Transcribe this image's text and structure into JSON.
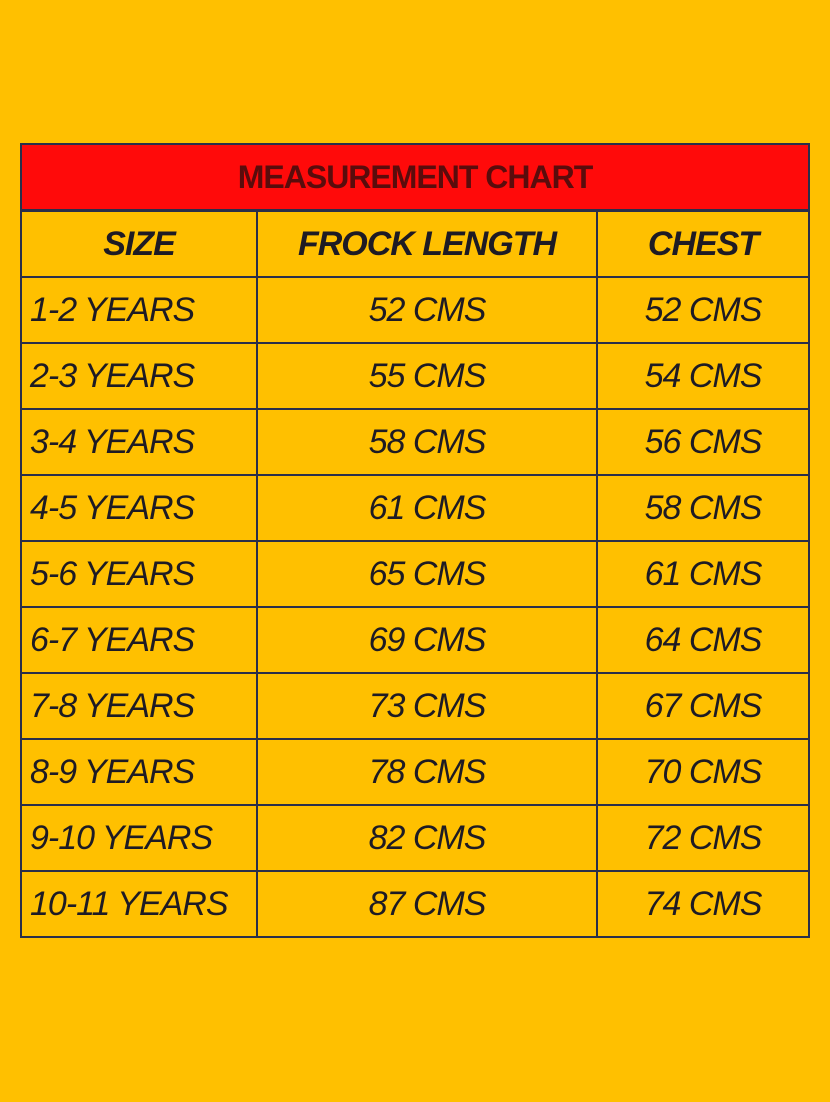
{
  "title": "MEASUREMENT CHART",
  "columns": [
    "SIZE",
    "FROCK LENGTH",
    "CHEST"
  ],
  "rows": [
    [
      "1-2 YEARS",
      "52 CMS",
      "52 CMS"
    ],
    [
      "2-3 YEARS",
      "55 CMS",
      "54 CMS"
    ],
    [
      "3-4 YEARS",
      "58 CMS",
      "56 CMS"
    ],
    [
      "4-5 YEARS",
      "61 CMS",
      "58 CMS"
    ],
    [
      "5-6 YEARS",
      "65 CMS",
      "61 CMS"
    ],
    [
      "6-7 YEARS",
      "69 CMS",
      "64 CMS"
    ],
    [
      "7-8 YEARS",
      "73 CMS",
      "67 CMS"
    ],
    [
      "8-9 YEARS",
      "78 CMS",
      "70 CMS"
    ],
    [
      "9-10 YEARS",
      "82 CMS",
      "72 CMS"
    ],
    [
      "10-11 YEARS",
      "87 CMS",
      "74 CMS"
    ]
  ],
  "colors": {
    "background": "#FFC000",
    "title_bar": "#FF0A0A",
    "title_text": "#5a0c0c"
  }
}
